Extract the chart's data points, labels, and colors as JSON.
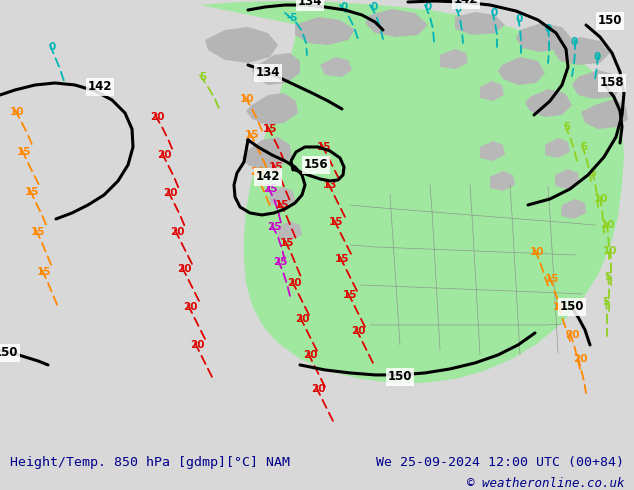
{
  "title_left": "Height/Temp. 850 hPa [gdmp][°C] NAM",
  "title_right": "We 25-09-2024 12:00 UTC (00+84)",
  "copyright": "© weatheronline.co.uk",
  "bg_color": "#d8d8d8",
  "green_fill": "#a0e8a0",
  "gray_map": "#c8c8c8",
  "white_bottom": "#ffffff",
  "title_color": "#00008b",
  "fig_width": 6.34,
  "fig_height": 4.9,
  "dpi": 100
}
